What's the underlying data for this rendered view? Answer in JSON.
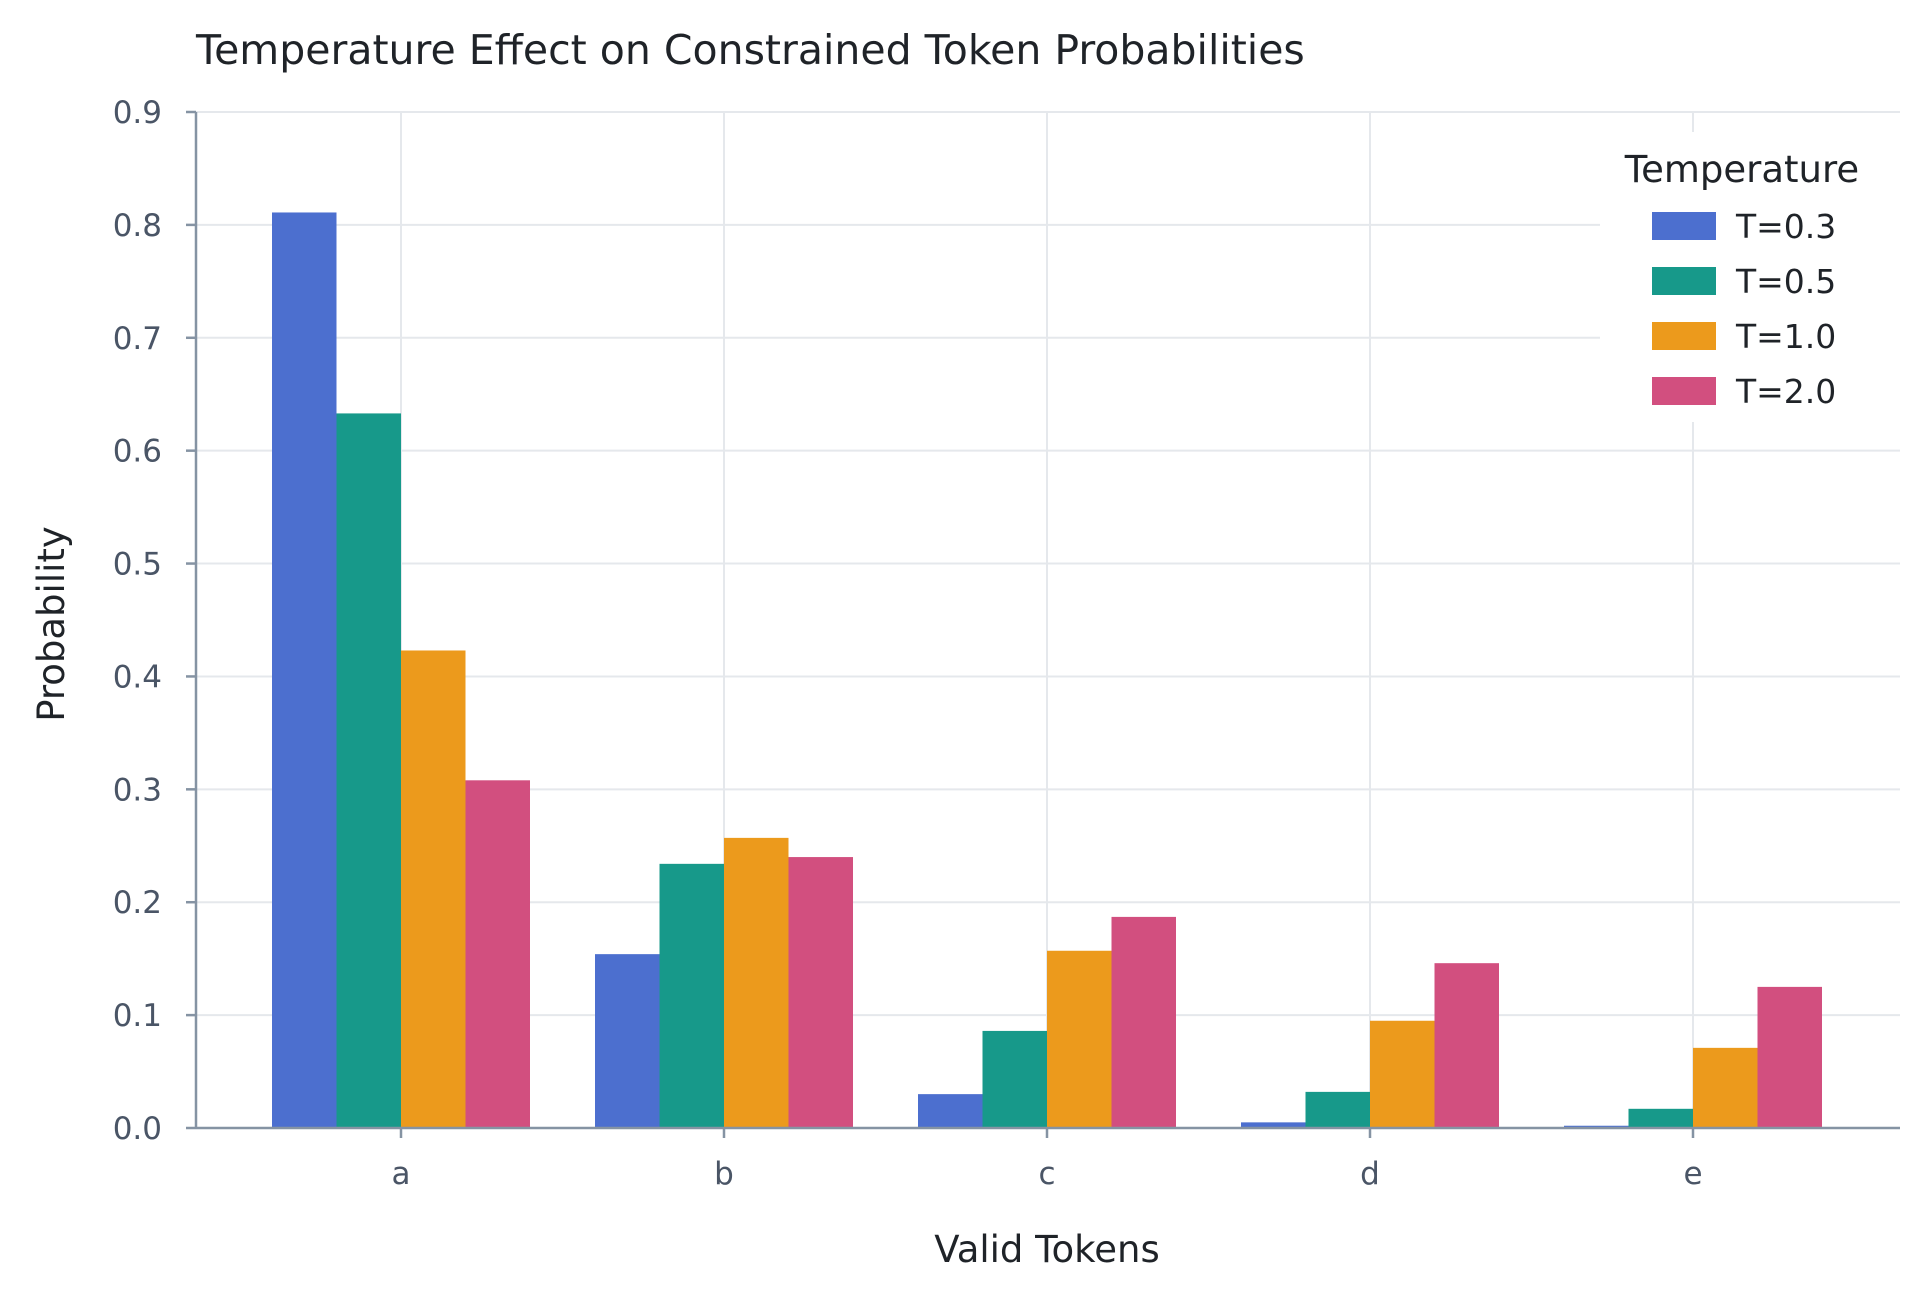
{
  "chart_data": {
    "type": "bar",
    "title": "Temperature Effect on Constrained Token Probabilities",
    "xlabel": "Valid Tokens",
    "ylabel": "Probability",
    "categories": [
      "a",
      "b",
      "c",
      "d",
      "e"
    ],
    "ylim": [
      0,
      0.9
    ],
    "yticks": [
      "0.0",
      "0.1",
      "0.2",
      "0.3",
      "0.4",
      "0.5",
      "0.6",
      "0.7",
      "0.8",
      "0.9"
    ],
    "grid": true,
    "legend": {
      "title": "Temperature",
      "placement": "top-right"
    },
    "series": [
      {
        "name": "T=0.3",
        "color": "#4c6fcf",
        "values": [
          0.811,
          0.154,
          0.03,
          0.005,
          0.002
        ]
      },
      {
        "name": "T=0.5",
        "color": "#17998a",
        "values": [
          0.633,
          0.234,
          0.086,
          0.032,
          0.017
        ]
      },
      {
        "name": "T=1.0",
        "color": "#ec9a1c",
        "values": [
          0.423,
          0.257,
          0.157,
          0.095,
          0.071
        ]
      },
      {
        "name": "T=2.0",
        "color": "#d24f7f",
        "values": [
          0.308,
          0.24,
          0.187,
          0.146,
          0.125
        ]
      }
    ]
  }
}
